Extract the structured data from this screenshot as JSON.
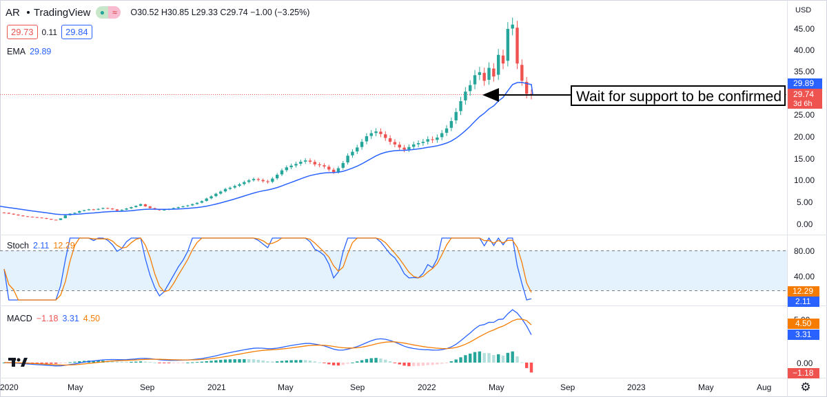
{
  "header": {
    "symbol": "AR",
    "source": "TradingView",
    "open_label": "O",
    "open": "30.52",
    "high_label": "H",
    "high": "30.85",
    "low_label": "L",
    "low": "29.33",
    "close_label": "C",
    "close": "29.74",
    "change": "−1.00 (−3.25%)",
    "bid": "29.73",
    "spread": "0.11",
    "ask": "29.84",
    "ema_label": "EMA",
    "ema_value": "29.89"
  },
  "price_axis": {
    "currency": "USD",
    "ticks": [
      "45.00",
      "40.00",
      "35.00",
      "30.00",
      "25.00",
      "20.00",
      "15.00",
      "10.00",
      "5.00",
      "0.00"
    ],
    "ema_tag": "29.89",
    "close_tag": "29.74",
    "countdown_tag": "3d 6h"
  },
  "stoch": {
    "label": "Stoch",
    "k_value": "2.11",
    "d_value": "12.29",
    "ticks": [
      "80.00",
      "40.00"
    ],
    "tag_d": "12.29",
    "tag_k": "2.11"
  },
  "macd": {
    "label": "MACD",
    "hist_value": "−1.18",
    "macd_value": "3.31",
    "signal_value": "4.50",
    "ticks": [
      "0.00"
    ],
    "tag_signal": "4.50",
    "tag_macd": "3.31",
    "tag_hist": "−1.18"
  },
  "time_axis": {
    "labels": [
      "2020",
      "May",
      "Sep",
      "2021",
      "May",
      "Sep",
      "2022",
      "May",
      "Sep",
      "2023",
      "May",
      "Aug"
    ]
  },
  "annotation": {
    "text": "Wait for support to be confirmed"
  },
  "colors": {
    "up": "#26a69a",
    "down": "#ef5350",
    "ema": "#2962ff",
    "stoch_k": "#2962ff",
    "stoch_d": "#f57c00",
    "macd_line": "#2962ff",
    "signal_line": "#f57c00",
    "stoch_band": "#e3f2fd"
  },
  "chart_data": [
    {
      "type": "candlestick",
      "pane": "price",
      "currency": "USD",
      "ylim": [
        -1.5,
        49
      ],
      "x_period": "weekly, Jan 2020 – Jul 2022",
      "close": [
        2.5,
        2.3,
        2.1,
        1.9,
        1.7,
        1.6,
        1.5,
        1.4,
        1.3,
        1.1,
        0.9,
        0.8,
        1.2,
        1.9,
        2.3,
        2.5,
        2.9,
        3.1,
        3.3,
        3.2,
        3.4,
        3.6,
        3.5,
        3.3,
        3.0,
        3.2,
        3.5,
        3.8,
        4.1,
        4.5,
        4.0,
        3.6,
        3.3,
        3.1,
        3.2,
        3.4,
        3.6,
        3.8,
        4.0,
        4.2,
        4.5,
        4.8,
        5.2,
        5.8,
        6.3,
        6.9,
        7.4,
        8.0,
        8.3,
        8.7,
        9.1,
        9.6,
        10.0,
        10.3,
        10.1,
        9.8,
        9.6,
        10.4,
        11.3,
        12.3,
        13.0,
        13.4,
        13.8,
        14.3,
        14.6,
        14.3,
        13.7,
        13.5,
        13.2,
        12.5,
        11.9,
        12.8,
        14.0,
        15.7,
        16.6,
        17.6,
        18.9,
        20.2,
        20.9,
        21.3,
        20.7,
        19.8,
        18.9,
        18.3,
        17.6,
        17.1,
        17.7,
        18.3,
        18.6,
        18.9,
        19.5,
        19.3,
        19.9,
        20.9,
        22.0,
        23.7,
        25.8,
        28.3,
        30.5,
        32.0,
        34.3,
        35.0,
        33.0,
        36.0,
        34.0,
        39.0,
        37.0,
        45.0,
        46.0,
        37.0,
        33.0,
        30.0,
        29.74
      ],
      "ema_last": 29.89
    },
    {
      "type": "line",
      "pane": "stochastic",
      "ylim": [
        0,
        100
      ],
      "levels": [
        80,
        20
      ],
      "series": [
        {
          "name": "%K",
          "last": 2.11
        },
        {
          "name": "%D",
          "last": 12.29
        }
      ]
    },
    {
      "type": "line+histogram",
      "pane": "macd",
      "ylim": [
        -3,
        12
      ],
      "series": [
        {
          "name": "MACD",
          "last": 3.31
        },
        {
          "name": "Signal",
          "last": 4.5
        },
        {
          "name": "Histogram",
          "last": -1.18
        }
      ]
    }
  ]
}
